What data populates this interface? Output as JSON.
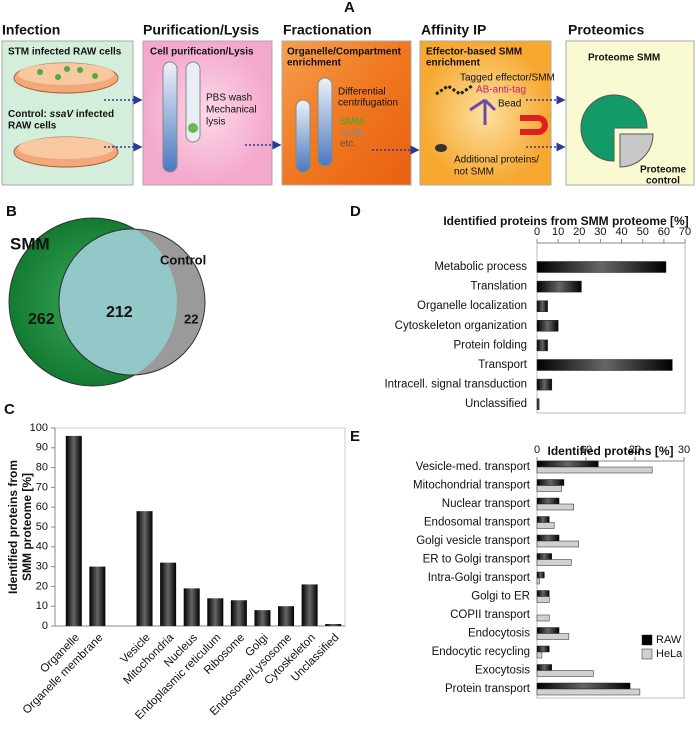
{
  "panels": {
    "a": "A",
    "b": "B",
    "c": "C",
    "d": "D",
    "e": "E"
  },
  "workflow": {
    "steps": [
      "Infection",
      "Purification/Lysis",
      "Fractionation",
      "Affinity IP",
      "Proteomics"
    ],
    "infection": {
      "infected": "STM infected RAW cells",
      "control_prefix": "Control:",
      "control_strain": "ssaV",
      "control_suffix": "infected",
      "control_line2": "RAW cells"
    },
    "lysis": {
      "heading": "Cell purification/Lysis",
      "lines": [
        "PBS wash",
        "Mechanical",
        "lysis"
      ]
    },
    "fractionation": {
      "heading": [
        "Organelle/Compartment",
        "enrichment"
      ],
      "method": [
        "Differential",
        "centrifugation"
      ],
      "labels": [
        "SMM",
        "Golgi",
        "etc."
      ]
    },
    "affinity": {
      "heading": [
        "Effector-based SMM",
        "enrichment"
      ],
      "tag": "Tagged effector/SMM",
      "antibody": "AB-anti-tag",
      "bead": "Bead",
      "other": [
        "Additional proteins/",
        "not SMM"
      ]
    },
    "proteomics": {
      "smm": "Proteome SMM",
      "control": [
        "Proteome",
        "control"
      ]
    }
  },
  "venn": {
    "sets": [
      {
        "name": "SMM"
      },
      {
        "name": "Control"
      }
    ],
    "only_smm": 262,
    "shared": 212,
    "only_control": 22
  },
  "chart_data": [
    {
      "type": "bar",
      "categories": [
        "Organelle",
        "Organelle membrane",
        null,
        "Vesicle",
        "Mitochondria",
        "Nucleus",
        "Endoplasmic reticulum",
        "Ribosome",
        "Golgi",
        "Endosome/Lysosome",
        "Cytoskeleton",
        "Unclassified"
      ],
      "values": [
        96,
        30,
        null,
        58,
        32,
        19,
        14,
        13,
        8,
        10,
        21,
        1
      ],
      "ylabel": [
        "Identified proteins from",
        "SMM proteome [%]"
      ],
      "ylim": [
        0,
        100
      ],
      "yticks": [
        0,
        10,
        20,
        30,
        40,
        50,
        60,
        70,
        80,
        90,
        100
      ],
      "color": "#000000"
    },
    {
      "type": "barh",
      "title": "Identified proteins from SMM proteome [%]",
      "categories": [
        "Metabolic process",
        "Translation",
        "Organelle localization",
        "Cytoskeleton organization",
        "Protein folding",
        "Transport",
        "Intracell. signal transduction",
        "Unclassified"
      ],
      "values": [
        61,
        21,
        5,
        10,
        5,
        64,
        7,
        1
      ],
      "xlim": [
        0,
        70
      ],
      "xticks": [
        0,
        10,
        20,
        30,
        40,
        50,
        60,
        70
      ],
      "color": "#000000"
    },
    {
      "type": "barh",
      "title": "Identified proteins [%]",
      "categories": [
        "Vesicle-med. transport",
        "Mitochondrial transport",
        "Nuclear transport",
        "Endosomal transport",
        "Golgi vesicle transport",
        "ER to Golgi transport",
        "Intra-Golgi transport",
        "Golgi to ER",
        "COPII transport",
        "Endocytosis",
        "Endocytic recycling",
        "Exocytosis",
        "Protein transport"
      ],
      "series": [
        {
          "name": "RAW",
          "color": "#000000",
          "values": [
            12.5,
            5.5,
            4.5,
            2.5,
            4.5,
            3,
            1.5,
            2.5,
            0,
            4.5,
            2.5,
            3,
            19
          ]
        },
        {
          "name": "HeLa",
          "color": "#d0d0d0",
          "values": [
            23.5,
            5,
            7.5,
            3.5,
            8.5,
            7,
            0.5,
            2.5,
            2.5,
            6.5,
            1,
            11.5,
            21
          ]
        }
      ],
      "xlim": [
        0,
        30
      ],
      "xticks": [
        0,
        10,
        20,
        30
      ],
      "legend": "lower right"
    }
  ]
}
